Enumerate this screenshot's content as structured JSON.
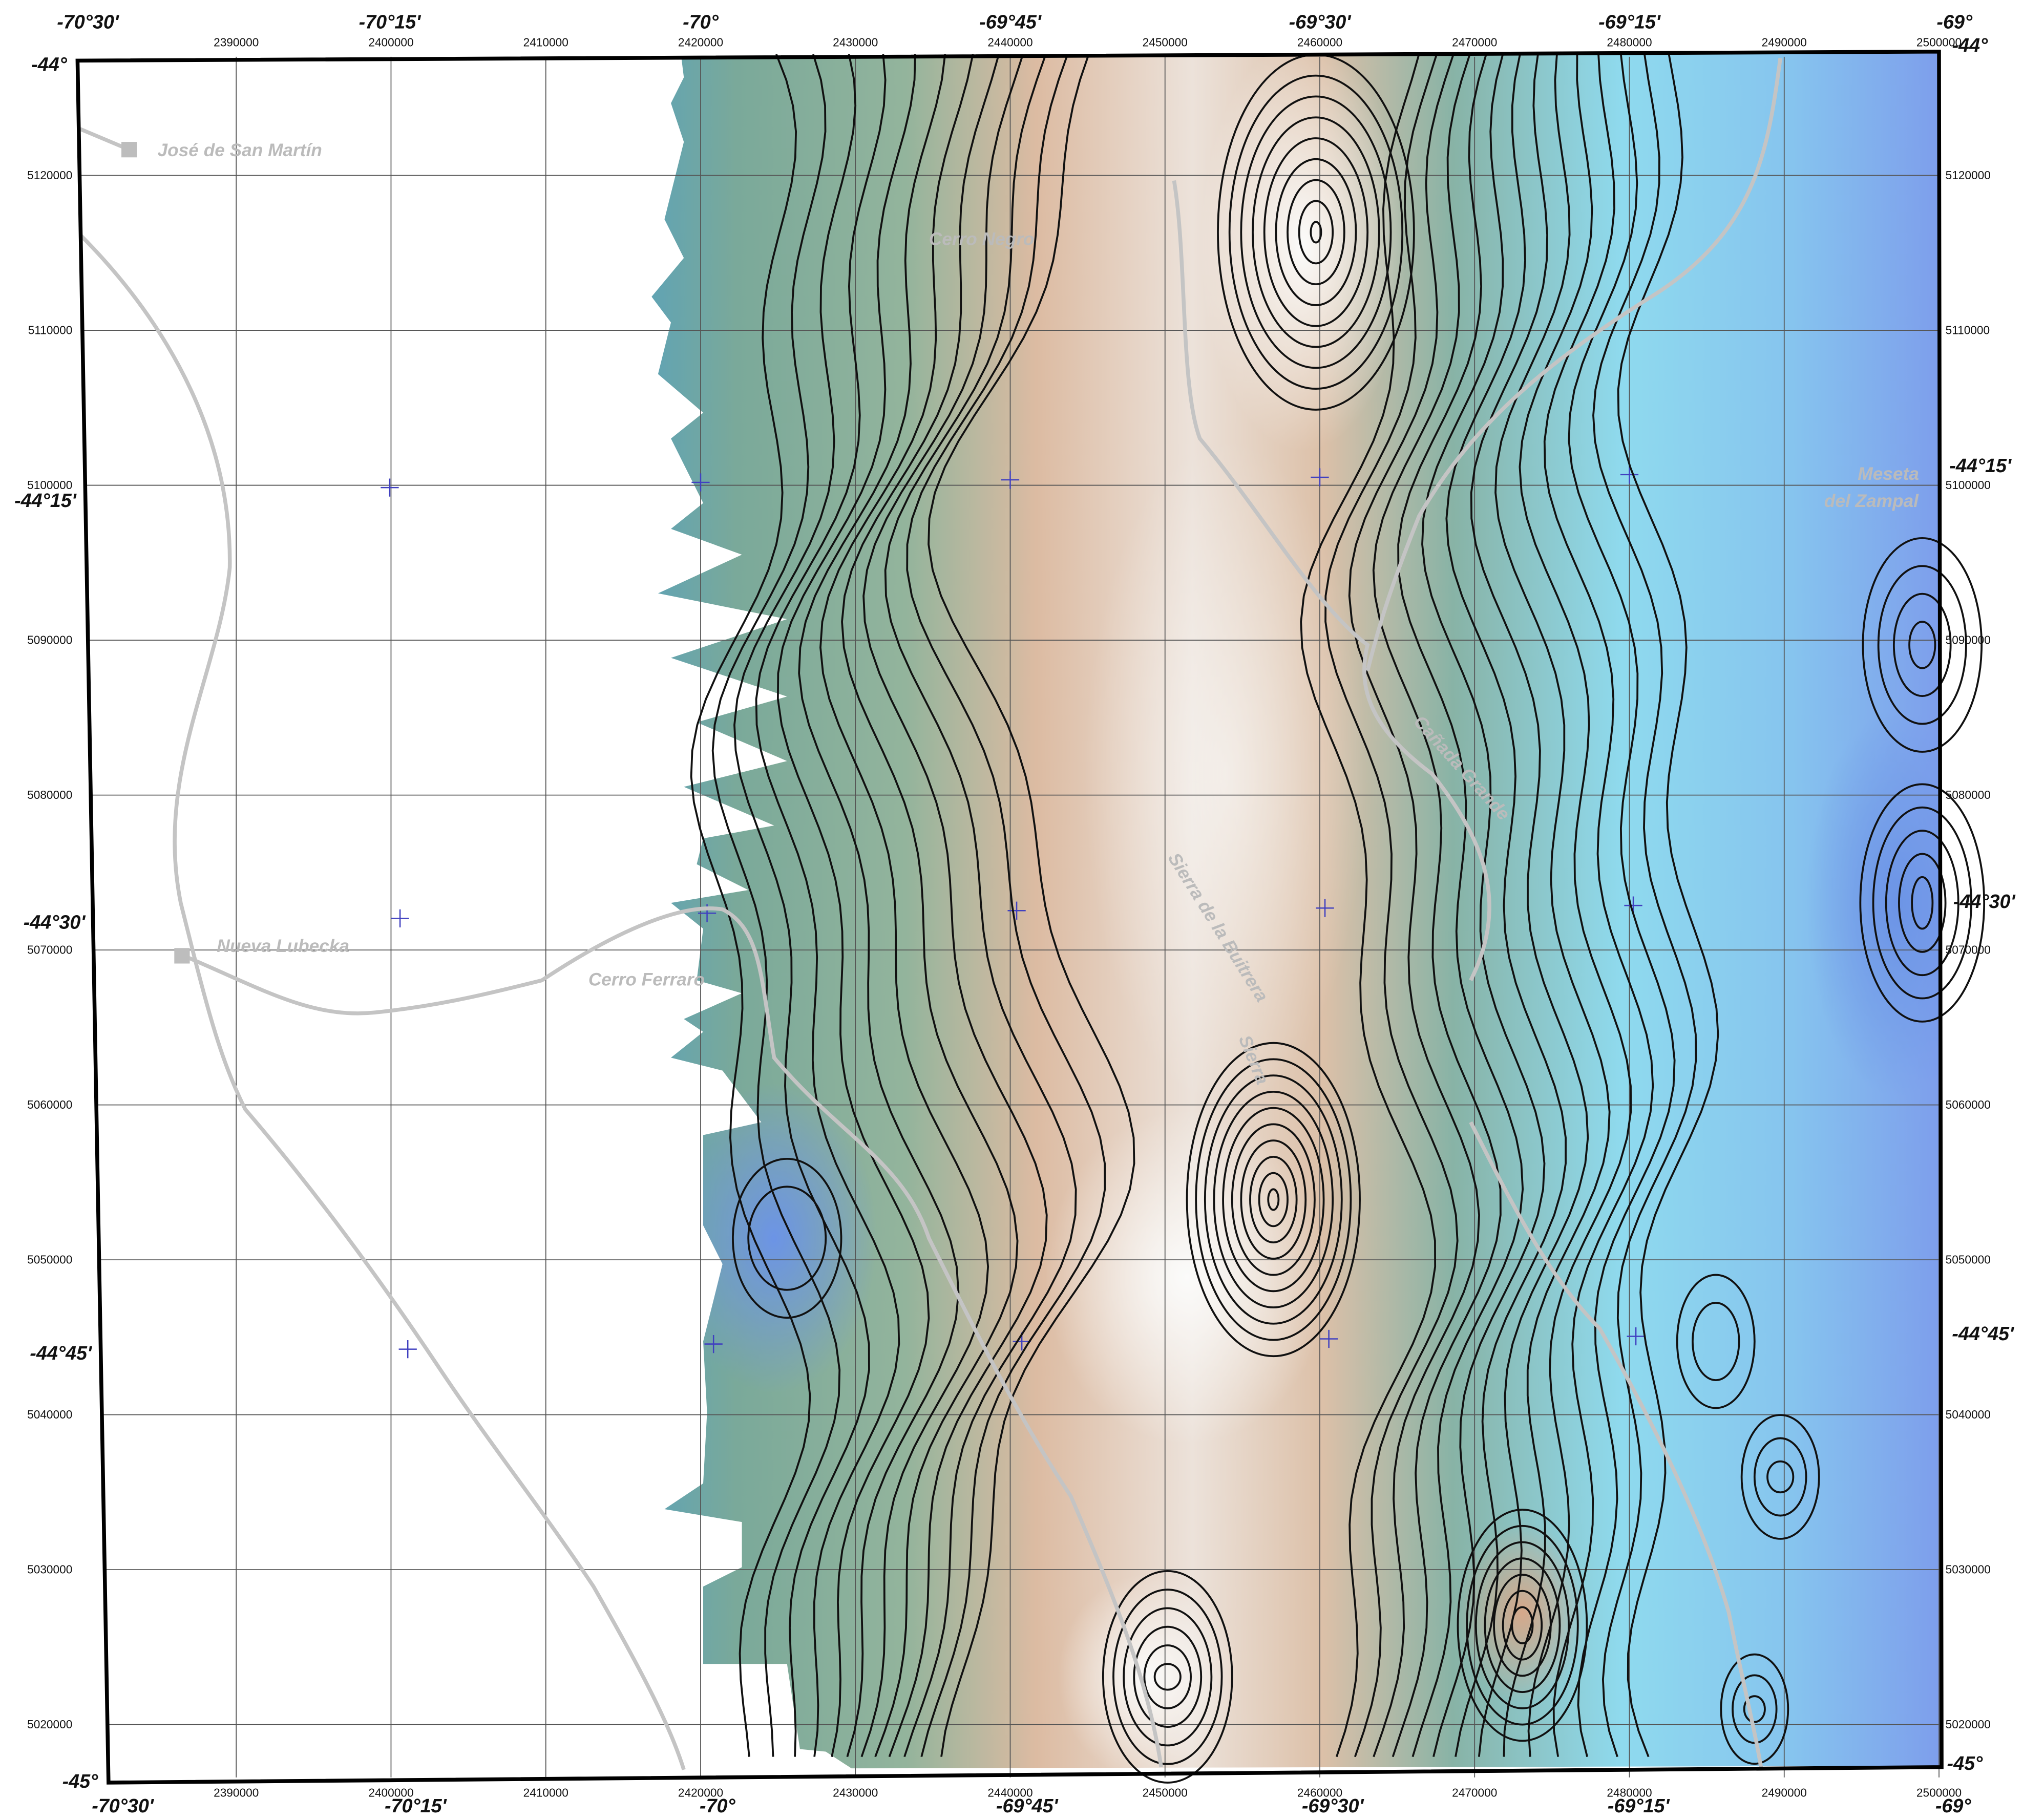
{
  "map": {
    "eastings": [
      2390000,
      2400000,
      2410000,
      2420000,
      2430000,
      2440000,
      2450000,
      2460000,
      2470000,
      2480000,
      2490000,
      2500000
    ],
    "northings": [
      5120000,
      5110000,
      5100000,
      5090000,
      5080000,
      5070000,
      5060000,
      5050000,
      5040000,
      5030000,
      5020000
    ],
    "top_longitudes": [
      "-70°30'",
      "-70°15'",
      "-70°",
      "-69°45'",
      "-69°30'",
      "-69°15'",
      "-69°"
    ],
    "bottom_longitudes": [
      "-70°30'",
      "-70°15'",
      "-70°",
      "-69°45'",
      "-69°30'",
      "-69°15'",
      "-69°"
    ],
    "left_latitudes": [
      "-44°",
      "-44°15'",
      "-44°30'",
      "-44°45'",
      "-45°"
    ],
    "right_latitudes": [
      "-44°",
      "-44°15'",
      "-44°30'",
      "-44°45'",
      "-45°"
    ],
    "places": [
      "José de San Martín",
      "Cerro Negro",
      "Nueva Lubecka",
      "Cerro Ferraro",
      "Meseta",
      "del Zampal",
      "Cañada Grande",
      "Sierra de la Buitrera",
      "Sierra"
    ]
  }
}
